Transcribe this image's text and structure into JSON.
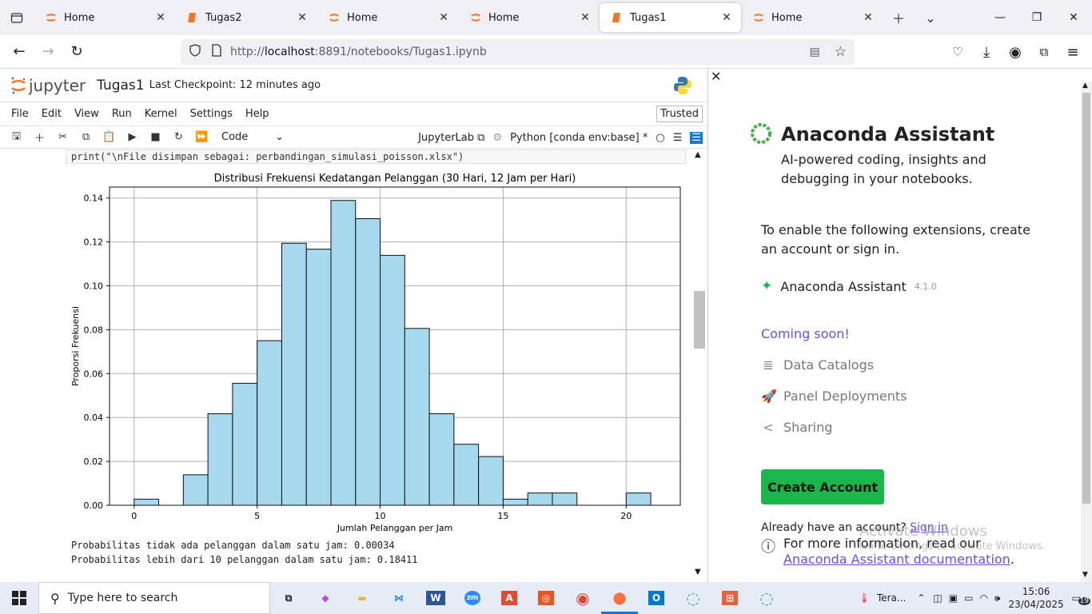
{
  "browser": {
    "tabs": [
      {
        "label": "Home",
        "icon": "jupyter-icon"
      },
      {
        "label": "Tugas2",
        "icon": "notebook-icon"
      },
      {
        "label": "Home",
        "icon": "jupyter-icon"
      },
      {
        "label": "Home",
        "icon": "jupyter-icon"
      },
      {
        "label": "Tugas1",
        "icon": "notebook-icon",
        "active": true
      },
      {
        "label": "Home",
        "icon": "jupyter-icon"
      }
    ],
    "url_prefix": "http://",
    "url_host": "localhost",
    "url_rest": ":8891/notebooks/Tugas1.ipynb"
  },
  "jupyter": {
    "logo_text": "jupyter",
    "notebook_title": "Tugas1",
    "checkpoint": "Last Checkpoint: 12 minutes ago",
    "menu": [
      "File",
      "Edit",
      "View",
      "Run",
      "Kernel",
      "Settings",
      "Help"
    ],
    "trusted": "Trusted",
    "cell_type": "Code",
    "jupyterlab": "JupyterLab",
    "kernel": "Python [conda env:base] *",
    "code_line": "print(\"\\nFile disimpan sebagai: perbandingan_simulasi_poisson.xlsx\")",
    "output_lines": [
      "Probabilitas tidak ada pelanggan dalam satu jam: 0.00034",
      "Probabilitas lebih dari 10 pelanggan dalam satu jam: 0.18411"
    ]
  },
  "chart_data": {
    "type": "bar",
    "title": "Distribusi Frekuensi Kedatangan Pelanggan (30 Hari, 12 Jam per Hari)",
    "xlabel": "Jumlah Pelanggan per Jam",
    "ylabel": "Proporsi Frekuensi",
    "bin_starts": [
      0,
      1,
      2,
      3,
      4,
      5,
      6,
      7,
      8,
      9,
      10,
      11,
      12,
      13,
      14,
      15,
      16,
      17,
      18,
      19,
      20
    ],
    "values": [
      0.0028,
      0,
      0.0139,
      0.0417,
      0.0556,
      0.075,
      0.1194,
      0.1167,
      0.1389,
      0.1306,
      0.1139,
      0.0806,
      0.0417,
      0.0278,
      0.0222,
      0.0028,
      0.0056,
      0.0056,
      0,
      0,
      0.0056
    ],
    "xlim": [
      -1,
      22.2
    ],
    "ylim": [
      0,
      0.145
    ],
    "xticks": [
      0,
      5,
      10,
      15,
      20
    ],
    "yticks": [
      "0.00",
      "0.02",
      "0.04",
      "0.06",
      "0.08",
      "0.10",
      "0.12",
      "0.14"
    ],
    "bar_color": "#a6d8ee",
    "grid": true
  },
  "assistant": {
    "title": "Anaconda Assistant",
    "subtitle": "AI-powered coding, insights and debugging in your notebooks.",
    "enable_text": "To enable the following extensions, create an account or sign in.",
    "extension_name": "Anaconda Assistant",
    "extension_version": "4.1.0",
    "coming_soon": "Coming soon!",
    "soon_items": [
      "Data Catalogs",
      "Panel Deployments",
      "Sharing"
    ],
    "create_button": "Create Account",
    "have_account": "Already have an account?",
    "sign_in": "Sign in",
    "info_prefix": "For more information, read our ",
    "info_link": "Anaconda Assistant documentation",
    "info_suffix": ".",
    "watermark_title": "Activate Windows",
    "watermark_sub": "Go to Settings to activate Windows.",
    "accent": "#6b4fd8",
    "button_color": "#1bb64a"
  },
  "taskbar": {
    "search_placeholder": "Type here to search",
    "weather": "Tera...",
    "time": "15:06",
    "date": "23/04/2025",
    "notif_count": "19"
  }
}
